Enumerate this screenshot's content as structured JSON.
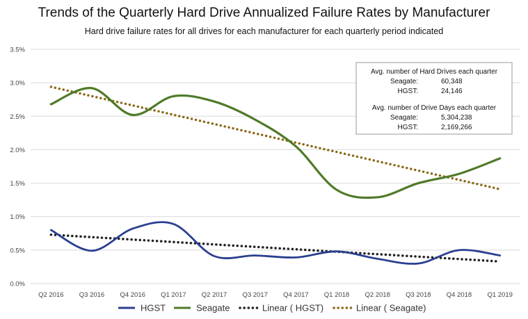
{
  "chart_data": {
    "type": "line",
    "title": "Trends of the Quarterly Hard Drive Annualized Failure Rates by Manufacturer",
    "subtitle": "Hard drive failure rates for all drives for each manufacturer for each quarterly period indicated",
    "categories": [
      "Q2 2016",
      "Q3 2016",
      "Q4 2016",
      "Q1 2017",
      "Q2 2017",
      "Q3 2017",
      "Q4 2017",
      "Q1 2018",
      "Q2 2018",
      "Q3 2018",
      "Q4 2018",
      "Q1 2019"
    ],
    "ylim": [
      0,
      3.5
    ],
    "yticks": [
      "0.0%",
      "0.5%",
      "1.0%",
      "1.5%",
      "2.0%",
      "2.5%",
      "3.0%",
      "3.5%"
    ],
    "grid": true,
    "legend_position": "bottom",
    "series": [
      {
        "name": "HGST",
        "color": "#2a3f8f",
        "style": "solid",
        "values": [
          0.8,
          0.49,
          0.82,
          0.89,
          0.41,
          0.42,
          0.39,
          0.48,
          0.37,
          0.3,
          0.5,
          0.42
        ]
      },
      {
        "name": "Seagate",
        "color": "#4f7a28",
        "style": "solid",
        "values": [
          2.68,
          2.92,
          2.52,
          2.8,
          2.72,
          2.45,
          2.05,
          1.4,
          1.29,
          1.5,
          1.64,
          1.87
        ]
      },
      {
        "name": "Linear ( HGST)",
        "color": "#222222",
        "style": "dotted",
        "values": [
          0.73,
          0.69,
          0.66,
          0.62,
          0.58,
          0.55,
          0.51,
          0.47,
          0.44,
          0.4,
          0.36,
          0.33
        ]
      },
      {
        "name": "Linear ( Seagate)",
        "color": "#8a6a1a",
        "style": "dotted",
        "values": [
          2.94,
          2.8,
          2.66,
          2.52,
          2.38,
          2.24,
          2.1,
          1.96,
          1.82,
          1.68,
          1.55,
          1.41
        ]
      }
    ],
    "info_box": {
      "heading1": "Avg. number of Hard Drives each quarter",
      "rows1": [
        {
          "label": "Seagate:",
          "value": "60,348"
        },
        {
          "label": "HGST:",
          "value": "24,146"
        }
      ],
      "heading2": "Avg. number of Drive Days each quarter",
      "rows2": [
        {
          "label": "Seagate:",
          "value": "5,304,238"
        },
        {
          "label": "HGST:",
          "value": "2,169,266"
        }
      ]
    }
  }
}
